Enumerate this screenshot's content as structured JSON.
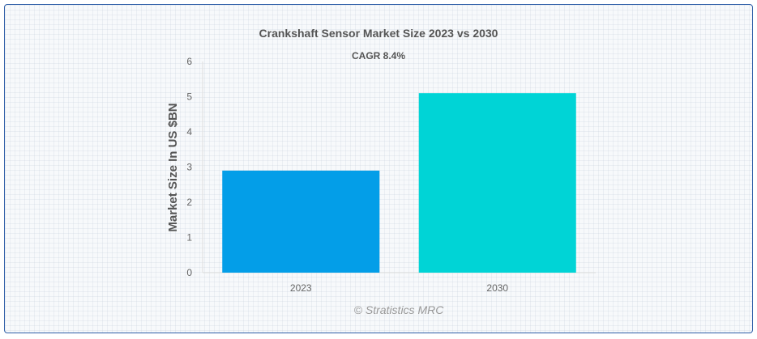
{
  "chart_data": {
    "type": "bar",
    "title": "Crankshaft Sensor Market Size 2023 vs 2030",
    "subtitle": "CAGR 8.4%",
    "xlabel": "",
    "ylabel": "Market Size In US $BN",
    "categories": [
      "2023",
      "2030"
    ],
    "values": [
      2.9,
      5.1
    ],
    "bar_colors": [
      "#039ee8",
      "#00d4d6"
    ],
    "ylim": [
      0,
      6
    ],
    "yticks": [
      "0",
      "1",
      "2",
      "3",
      "4",
      "5",
      "6"
    ],
    "grid": false,
    "legend": "none"
  },
  "watermark": "© Stratistics MRC"
}
